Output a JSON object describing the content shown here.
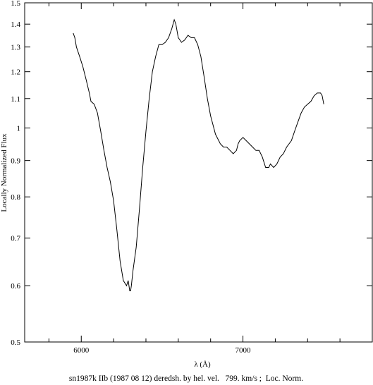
{
  "chart_data": {
    "type": "line",
    "title": "",
    "caption": "sn1987k IIb (1987 08 12) deredsh. by hel. vel.   799. km/s ;  Loc. Norm.",
    "xlabel": "λ (Å)",
    "ylabel": "Locally Normalized Flux",
    "xlim": [
      5650,
      7800
    ],
    "ylim": [
      0.5,
      1.5
    ],
    "yscale": "log",
    "x_ticks": [
      6000,
      7000
    ],
    "y_ticks": [
      0.5,
      0.6,
      0.7,
      0.8,
      0.9,
      1,
      1.1,
      1.2,
      1.3,
      1.4,
      1.5
    ],
    "grid": false,
    "series": [
      {
        "name": "",
        "color": "#000000",
        "x": [
          5950,
          5960,
          5970,
          5990,
          6010,
          6030,
          6050,
          6060,
          6080,
          6100,
          6120,
          6140,
          6160,
          6180,
          6200,
          6220,
          6240,
          6260,
          6280,
          6290,
          6300,
          6305,
          6310,
          6320,
          6340,
          6360,
          6380,
          6400,
          6420,
          6440,
          6460,
          6480,
          6500,
          6520,
          6540,
          6560,
          6575,
          6585,
          6600,
          6620,
          6640,
          6660,
          6680,
          6700,
          6720,
          6740,
          6760,
          6780,
          6800,
          6830,
          6860,
          6880,
          6900,
          6920,
          6940,
          6960,
          6970,
          6980,
          7000,
          7020,
          7040,
          7060,
          7080,
          7100,
          7120,
          7140,
          7160,
          7170,
          7190,
          7210,
          7230,
          7250,
          7270,
          7300,
          7320,
          7340,
          7360,
          7380,
          7400,
          7420,
          7440,
          7460,
          7480,
          7490,
          7500
        ],
        "values": [
          1.36,
          1.34,
          1.3,
          1.26,
          1.22,
          1.17,
          1.12,
          1.09,
          1.08,
          1.05,
          0.99,
          0.93,
          0.88,
          0.84,
          0.79,
          0.72,
          0.65,
          0.61,
          0.6,
          0.61,
          0.59,
          0.59,
          0.6,
          0.63,
          0.68,
          0.77,
          0.88,
          0.99,
          1.1,
          1.2,
          1.26,
          1.31,
          1.31,
          1.32,
          1.34,
          1.38,
          1.42,
          1.4,
          1.34,
          1.32,
          1.33,
          1.35,
          1.34,
          1.34,
          1.31,
          1.26,
          1.18,
          1.1,
          1.04,
          0.98,
          0.95,
          0.94,
          0.94,
          0.93,
          0.92,
          0.93,
          0.95,
          0.96,
          0.97,
          0.96,
          0.95,
          0.94,
          0.93,
          0.93,
          0.91,
          0.88,
          0.88,
          0.89,
          0.88,
          0.89,
          0.91,
          0.92,
          0.94,
          0.96,
          0.99,
          1.02,
          1.05,
          1.07,
          1.08,
          1.09,
          1.11,
          1.12,
          1.12,
          1.11,
          1.08
        ]
      }
    ]
  }
}
